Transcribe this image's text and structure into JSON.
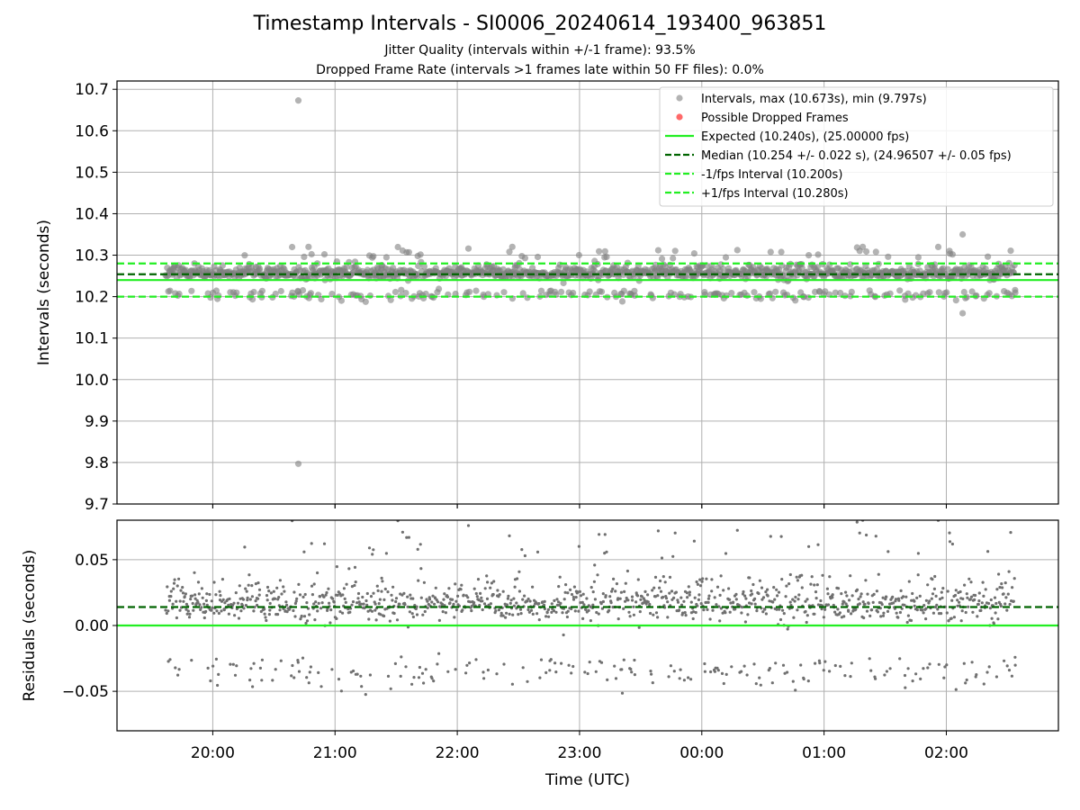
{
  "figure": {
    "title": "Timestamp Intervals - SI0006_20240614_193400_963851",
    "subtitle_1": "Jitter Quality (intervals within +/-1 frame): 93.5%",
    "subtitle_2": "Dropped Frame Rate (intervals >1 frames late within 50 FF files): 0.0%"
  },
  "colors": {
    "points": "#808080",
    "dropped": "#ff4444",
    "expected": "#22ee22",
    "median": "#006400",
    "interval": "#22ee22",
    "grid": "#b0b0b0"
  },
  "chart_data": [
    {
      "type": "scatter",
      "ylabel": "Intervals (seconds)",
      "xlabel": "",
      "xlim": [
        "19:13",
        "02:55"
      ],
      "ylim": [
        9.7,
        10.72
      ],
      "grid": true,
      "x_ticks": [
        "20:00",
        "21:00",
        "22:00",
        "23:00",
        "00:00",
        "01:00",
        "02:00"
      ],
      "y_ticks": [
        "9.7",
        "9.8",
        "9.9",
        "10.0",
        "10.1",
        "10.2",
        "10.3",
        "10.4",
        "10.5",
        "10.6",
        "10.7"
      ],
      "x_range": [
        "19:37",
        "02:34"
      ],
      "band_levels": [
        10.2,
        10.26,
        10.28
      ],
      "outliers": [
        {
          "x": "20:42",
          "y": 10.673
        },
        {
          "x": "20:42",
          "y": 9.797
        },
        {
          "x": "02:08",
          "y": 10.35
        },
        {
          "x": "02:08",
          "y": 10.16
        },
        {
          "x": "22:27",
          "y": 10.32
        },
        {
          "x": "20:47",
          "y": 10.32
        }
      ],
      "lines": [
        {
          "name": "Expected (10.240s), (25.00000 fps)",
          "value": 10.24,
          "style": "solid"
        },
        {
          "name": "Median (10.254 +/- 0.022 s), (24.96507 +/- 0.05 fps)",
          "value": 10.254,
          "style": "dashed-dark"
        },
        {
          "name": "-1/fps Interval (10.200s)",
          "value": 10.2,
          "style": "dashed"
        },
        {
          "name": "+1/fps Interval (10.280s)",
          "value": 10.28,
          "style": "dashed"
        }
      ],
      "legend": {
        "placement": "top-right",
        "entries": [
          "Intervals, max (10.673s), min (9.797s)",
          "Possible Dropped Frames",
          "Expected (10.240s), (25.00000 fps)",
          "Median (10.254 +/- 0.022 s), (24.96507 +/- 0.05 fps)",
          "-1/fps Interval (10.200s)",
          "+1/fps Interval (10.280s)"
        ]
      }
    },
    {
      "type": "scatter",
      "ylabel": "Residuals (seconds)",
      "xlabel": "Time (UTC)",
      "xlim": [
        "19:13",
        "02:55"
      ],
      "ylim": [
        -0.08,
        0.08
      ],
      "grid": true,
      "x_ticks": [
        "20:00",
        "21:00",
        "22:00",
        "23:00",
        "00:00",
        "01:00",
        "02:00"
      ],
      "y_ticks": [
        "−0.05",
        "0.00",
        "0.05"
      ],
      "band_levels": [
        -0.04,
        0.014,
        0.02
      ],
      "lines": [
        {
          "value": 0.0,
          "style": "solid"
        },
        {
          "value": 0.014,
          "style": "dashed-dark"
        }
      ]
    }
  ]
}
